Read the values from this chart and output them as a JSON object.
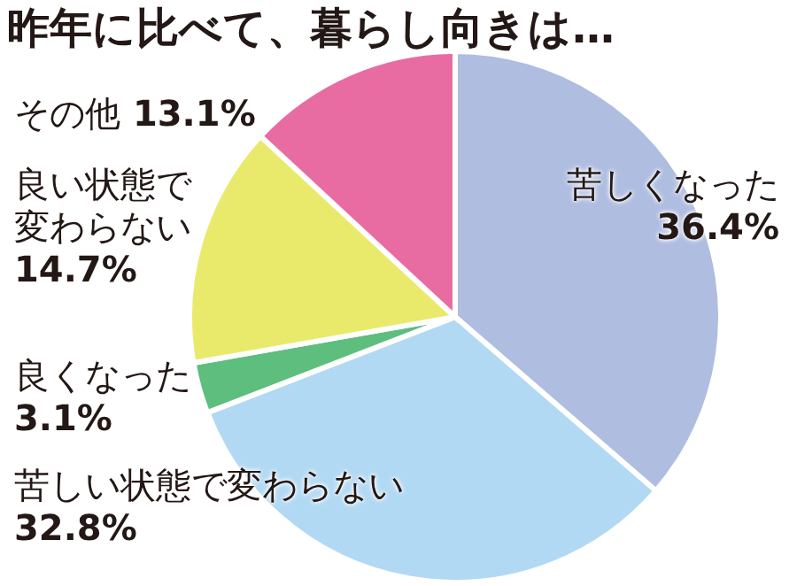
{
  "chart_data": {
    "type": "pie",
    "title": "昨年に比べて、暮らし向きは…",
    "categories": [
      "苦しくなった",
      "苦しい状態で変わらない",
      "良くなった",
      "良い状態で変わらない",
      "その他"
    ],
    "values": [
      36.4,
      32.8,
      3.1,
      14.7,
      13.1
    ],
    "value_labels": [
      "36.4%",
      "32.8%",
      "3.1%",
      "14.7%",
      "13.1%"
    ],
    "colors": [
      "#afbde1",
      "#b2d9f3",
      "#5dbe7e",
      "#e9ea6c",
      "#e86ca2"
    ]
  }
}
